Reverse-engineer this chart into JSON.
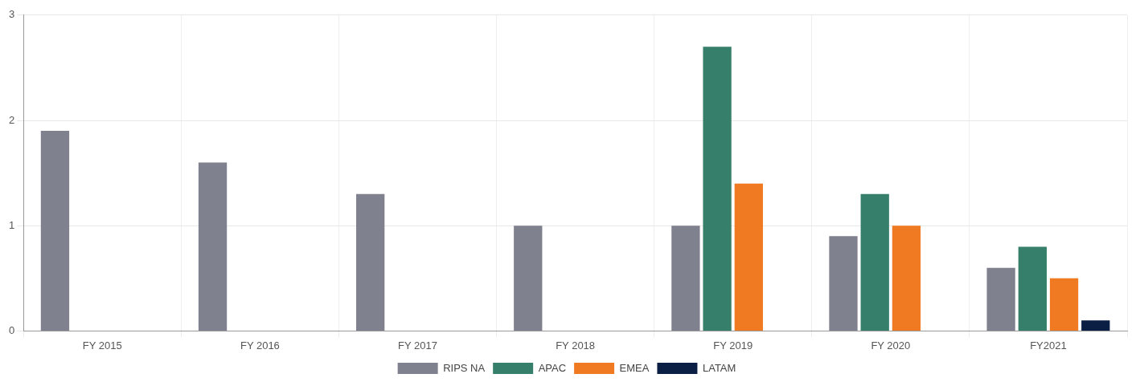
{
  "chart_data": {
    "type": "bar",
    "categories": [
      "FY 2015",
      "FY 2016",
      "FY 2017",
      "FY 2018",
      "FY 2019",
      "FY 2020",
      "FY2021"
    ],
    "series": [
      {
        "name": "RIPS NA",
        "color": "#7f818e",
        "values": [
          1.9,
          1.6,
          1.3,
          1.0,
          1.0,
          0.9,
          0.6
        ]
      },
      {
        "name": "APAC",
        "color": "#367f6b",
        "values": [
          null,
          null,
          null,
          null,
          2.7,
          1.3,
          0.8
        ]
      },
      {
        "name": "EMEA",
        "color": "#f07a22",
        "values": [
          null,
          null,
          null,
          null,
          1.4,
          1.0,
          0.5
        ]
      },
      {
        "name": "LATAM",
        "color": "#0b1f44",
        "values": [
          null,
          null,
          null,
          null,
          null,
          null,
          0.1
        ]
      }
    ],
    "ylim": [
      0,
      3
    ],
    "yticks": [
      0,
      1,
      2,
      3
    ],
    "grid": true,
    "legend": "bottom"
  }
}
